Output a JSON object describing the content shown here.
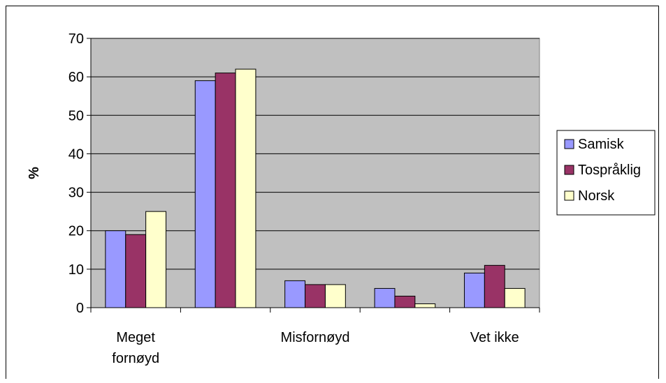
{
  "chart_data": {
    "type": "bar",
    "title": "",
    "xlabel": "",
    "ylabel": "%",
    "ylim": [
      0,
      70
    ],
    "yticks": [
      0,
      10,
      20,
      30,
      40,
      50,
      60,
      70
    ],
    "categories": [
      "Meget fornøyd",
      "",
      "Misfornøyd",
      "",
      "Vet ikke"
    ],
    "category_lines": [
      [
        "Meget",
        "fornøyd"
      ],
      [],
      [
        "Misfornøyd"
      ],
      [],
      [
        "Vet ikke"
      ]
    ],
    "series": [
      {
        "name": "Samisk",
        "color": "#9999ff",
        "values": [
          20,
          59,
          7,
          5,
          9
        ]
      },
      {
        "name": "Tospråklig",
        "color": "#993366",
        "values": [
          19,
          61,
          6,
          3,
          11
        ]
      },
      {
        "name": "Norsk",
        "color": "#ffffcc",
        "values": [
          25,
          62,
          6,
          1,
          5
        ]
      }
    ],
    "grid": true,
    "plot_background": "#c0c0c0",
    "legend_position": "right"
  }
}
